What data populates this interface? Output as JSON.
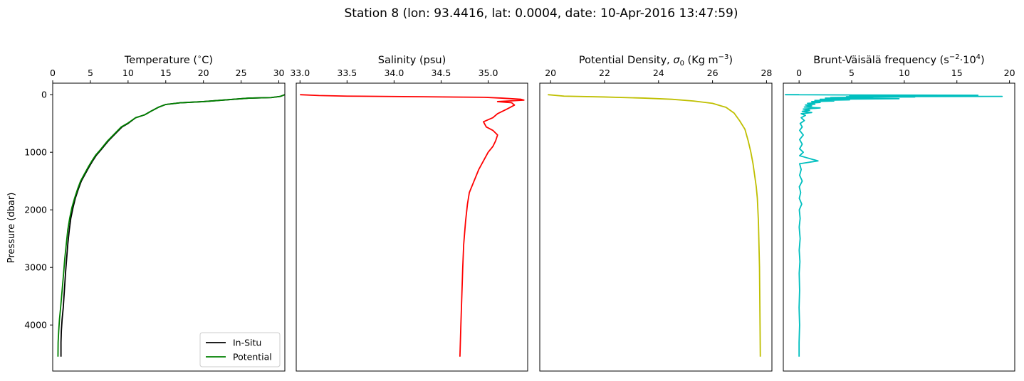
{
  "figure": {
    "suptitle": "Station 8 (lon: 93.4416, lat: 0.0004, date: 10-Apr-2016 13:47:59)"
  },
  "colors": {
    "in_situ": "#000000",
    "potential": "#008000",
    "salinity": "#ff0000",
    "density": "#bfbf00",
    "bvf": "#00bfbf"
  },
  "chart_data": [
    {
      "type": "line",
      "title": "Temperature (°C)",
      "title_parts": {
        "pre": "Temperature (",
        "sup": "∘",
        "post": "C)"
      },
      "xlabel_position": "top",
      "ylabel": "Pressure (dbar)",
      "xlim": [
        0,
        30.8
      ],
      "ylim": [
        4800,
        -200
      ],
      "xticks": [
        0,
        5,
        10,
        15,
        20,
        25,
        30
      ],
      "xtick_labels": [
        "0",
        "5",
        "10",
        "15",
        "20",
        "25",
        "30"
      ],
      "yticks": [
        0,
        1000,
        2000,
        3000,
        4000
      ],
      "ytick_labels": [
        "0",
        "1000",
        "2000",
        "3000",
        "4000"
      ],
      "legend": {
        "position": "lower-right",
        "entries": [
          "In-Situ",
          "Potential"
        ]
      },
      "series": [
        {
          "name": "In-Situ",
          "color_key": "in_situ",
          "points": [
            [
              30.8,
              0
            ],
            [
              30.2,
              30
            ],
            [
              29.0,
              50
            ],
            [
              26.0,
              60
            ],
            [
              24.0,
              80
            ],
            [
              22.0,
              100
            ],
            [
              20.0,
              120
            ],
            [
              17.0,
              140
            ],
            [
              15.0,
              170
            ],
            [
              14.0,
              220
            ],
            [
              13.0,
              290
            ],
            [
              12.2,
              350
            ],
            [
              11.0,
              400
            ],
            [
              10.0,
              500
            ],
            [
              9.2,
              560
            ],
            [
              8.6,
              640
            ],
            [
              8.0,
              720
            ],
            [
              7.4,
              800
            ],
            [
              6.9,
              880
            ],
            [
              6.4,
              960
            ],
            [
              5.8,
              1050
            ],
            [
              5.3,
              1150
            ],
            [
              4.8,
              1260
            ],
            [
              4.3,
              1380
            ],
            [
              3.8,
              1500
            ],
            [
              3.4,
              1640
            ],
            [
              3.0,
              1800
            ],
            [
              2.7,
              1960
            ],
            [
              2.4,
              2150
            ],
            [
              2.2,
              2350
            ],
            [
              2.0,
              2600
            ],
            [
              1.85,
              2850
            ],
            [
              1.7,
              3100
            ],
            [
              1.55,
              3400
            ],
            [
              1.4,
              3700
            ],
            [
              1.25,
              3900
            ],
            [
              1.15,
              4100
            ],
            [
              1.1,
              4300
            ],
            [
              1.1,
              4550
            ]
          ]
        },
        {
          "name": "Potential",
          "color_key": "potential",
          "points": [
            [
              30.8,
              0
            ],
            [
              30.2,
              30
            ],
            [
              29.0,
              50
            ],
            [
              26.0,
              60
            ],
            [
              24.0,
              80
            ],
            [
              22.0,
              100
            ],
            [
              20.0,
              120
            ],
            [
              17.0,
              140
            ],
            [
              15.0,
              170
            ],
            [
              14.0,
              220
            ],
            [
              13.0,
              290
            ],
            [
              12.2,
              350
            ],
            [
              11.0,
              400
            ],
            [
              9.9,
              500
            ],
            [
              9.1,
              560
            ],
            [
              8.5,
              640
            ],
            [
              7.9,
              720
            ],
            [
              7.3,
              800
            ],
            [
              6.8,
              880
            ],
            [
              6.3,
              960
            ],
            [
              5.7,
              1050
            ],
            [
              5.2,
              1150
            ],
            [
              4.7,
              1260
            ],
            [
              4.2,
              1380
            ],
            [
              3.7,
              1500
            ],
            [
              3.3,
              1640
            ],
            [
              2.9,
              1800
            ],
            [
              2.55,
              1960
            ],
            [
              2.25,
              2150
            ],
            [
              2.0,
              2350
            ],
            [
              1.8,
              2600
            ],
            [
              1.6,
              2850
            ],
            [
              1.45,
              3100
            ],
            [
              1.25,
              3400
            ],
            [
              1.05,
              3700
            ],
            [
              0.9,
              3900
            ],
            [
              0.8,
              4100
            ],
            [
              0.72,
              4300
            ],
            [
              0.7,
              4550
            ]
          ]
        }
      ]
    },
    {
      "type": "line",
      "title": "Salinity (psu)",
      "xlabel_position": "top",
      "xlim": [
        32.96,
        35.42
      ],
      "ylim": [
        4800,
        -200
      ],
      "xticks": [
        33.0,
        33.5,
        34.0,
        34.5,
        35.0
      ],
      "xtick_labels": [
        "33.0",
        "33.5",
        "34.0",
        "34.5",
        "35.0"
      ],
      "series": [
        {
          "name": "Salinity",
          "color_key": "salinity",
          "points": [
            [
              33.0,
              0
            ],
            [
              33.2,
              15
            ],
            [
              33.5,
              25
            ],
            [
              34.2,
              35
            ],
            [
              34.96,
              45
            ],
            [
              35.15,
              60
            ],
            [
              35.35,
              80
            ],
            [
              35.38,
              95
            ],
            [
              35.1,
              120
            ],
            [
              35.25,
              140
            ],
            [
              35.28,
              180
            ],
            [
              35.2,
              250
            ],
            [
              35.1,
              330
            ],
            [
              35.05,
              400
            ],
            [
              34.95,
              470
            ],
            [
              34.98,
              560
            ],
            [
              35.05,
              620
            ],
            [
              35.1,
              700
            ],
            [
              35.08,
              800
            ],
            [
              35.05,
              900
            ],
            [
              35.0,
              1000
            ],
            [
              34.95,
              1150
            ],
            [
              34.9,
              1300
            ],
            [
              34.85,
              1500
            ],
            [
              34.8,
              1700
            ],
            [
              34.78,
              1900
            ],
            [
              34.76,
              2200
            ],
            [
              34.74,
              2600
            ],
            [
              34.73,
              3000
            ],
            [
              34.72,
              3500
            ],
            [
              34.71,
              4000
            ],
            [
              34.7,
              4550
            ]
          ]
        }
      ]
    },
    {
      "type": "line",
      "title": "Potential Density, σ0 (Kg m−3)",
      "title_parts": {
        "pre": "Potential Density, ",
        "sigma": "σ",
        "sub": "0",
        "mid": " (Kg m",
        "sup": "−3",
        "post": ")"
      },
      "xlabel_position": "top",
      "xlim": [
        19.6,
        28.2
      ],
      "ylim": [
        4800,
        -200
      ],
      "xticks": [
        20,
        22,
        24,
        26,
        28
      ],
      "xtick_labels": [
        "20",
        "22",
        "24",
        "26",
        "28"
      ],
      "series": [
        {
          "name": "Density",
          "color_key": "density",
          "points": [
            [
              19.9,
              0
            ],
            [
              20.5,
              25
            ],
            [
              22.0,
              40
            ],
            [
              23.5,
              60
            ],
            [
              24.5,
              80
            ],
            [
              25.3,
              110
            ],
            [
              26.0,
              150
            ],
            [
              26.5,
              220
            ],
            [
              26.8,
              320
            ],
            [
              27.0,
              450
            ],
            [
              27.2,
              600
            ],
            [
              27.32,
              800
            ],
            [
              27.42,
              1000
            ],
            [
              27.5,
              1200
            ],
            [
              27.56,
              1400
            ],
            [
              27.62,
              1600
            ],
            [
              27.66,
              1800
            ],
            [
              27.7,
              2200
            ],
            [
              27.72,
              2600
            ],
            [
              27.74,
              3000
            ],
            [
              27.75,
              3500
            ],
            [
              27.76,
              4000
            ],
            [
              27.77,
              4550
            ]
          ]
        }
      ]
    },
    {
      "type": "line",
      "title": "Brunt-Väisälä frequency (s−2·10^4)",
      "title_parts": {
        "pre": "Brunt-Väisälä frequency (s",
        "sup1": "−2",
        "mid": "·10",
        "sup2": "4",
        "post": ")"
      },
      "xlabel_position": "top",
      "xlim": [
        -1.5,
        20.5
      ],
      "ylim": [
        4800,
        -200
      ],
      "xticks": [
        0,
        5,
        10,
        15,
        20
      ],
      "xtick_labels": [
        "0",
        "5",
        "10",
        "15",
        "20"
      ],
      "series": [
        {
          "name": "BVF",
          "color_key": "bvf",
          "points": [
            [
              0,
              0
            ],
            [
              -1.3,
              0
            ],
            [
              5.0,
              5
            ],
            [
              17.0,
              10
            ],
            [
              4.8,
              15
            ],
            [
              10.5,
              20
            ],
            [
              6.0,
              25
            ],
            [
              19.3,
              30
            ],
            [
              4.5,
              35
            ],
            [
              11.0,
              40
            ],
            [
              5.0,
              45
            ],
            [
              3.0,
              50
            ],
            [
              7.0,
              55
            ],
            [
              2.5,
              60
            ],
            [
              9.5,
              70
            ],
            [
              2.0,
              80
            ],
            [
              4.8,
              90
            ],
            [
              1.5,
              100
            ],
            [
              3.3,
              110
            ],
            [
              1.2,
              120
            ],
            [
              2.0,
              135
            ],
            [
              0.8,
              150
            ],
            [
              1.5,
              165
            ],
            [
              0.6,
              180
            ],
            [
              1.2,
              195
            ],
            [
              0.5,
              215
            ],
            [
              2.0,
              230
            ],
            [
              0.4,
              250
            ],
            [
              1.0,
              270
            ],
            [
              0.3,
              290
            ],
            [
              1.2,
              310
            ],
            [
              0.2,
              330
            ],
            [
              0.6,
              360
            ],
            [
              0.2,
              400
            ],
            [
              0.5,
              450
            ],
            [
              0.1,
              500
            ],
            [
              0.3,
              560
            ],
            [
              0.05,
              620
            ],
            [
              0.4,
              700
            ],
            [
              0.05,
              780
            ],
            [
              0.3,
              860
            ],
            [
              0.05,
              940
            ],
            [
              0.4,
              1000
            ],
            [
              0.05,
              1060
            ],
            [
              1.8,
              1150
            ],
            [
              0.05,
              1200
            ],
            [
              0.2,
              1300
            ],
            [
              0.05,
              1400
            ],
            [
              0.3,
              1500
            ],
            [
              0.02,
              1600
            ],
            [
              0.15,
              1700
            ],
            [
              0.02,
              1800
            ],
            [
              0.25,
              1900
            ],
            [
              0.02,
              2000
            ],
            [
              0.1,
              2150
            ],
            [
              0.01,
              2300
            ],
            [
              0.1,
              2500
            ],
            [
              0.01,
              2700
            ],
            [
              0.08,
              2900
            ],
            [
              0.01,
              3100
            ],
            [
              0.05,
              3400
            ],
            [
              0.0,
              3700
            ],
            [
              0.05,
              4000
            ],
            [
              0.0,
              4300
            ],
            [
              0.0,
              4550
            ]
          ]
        }
      ]
    }
  ]
}
